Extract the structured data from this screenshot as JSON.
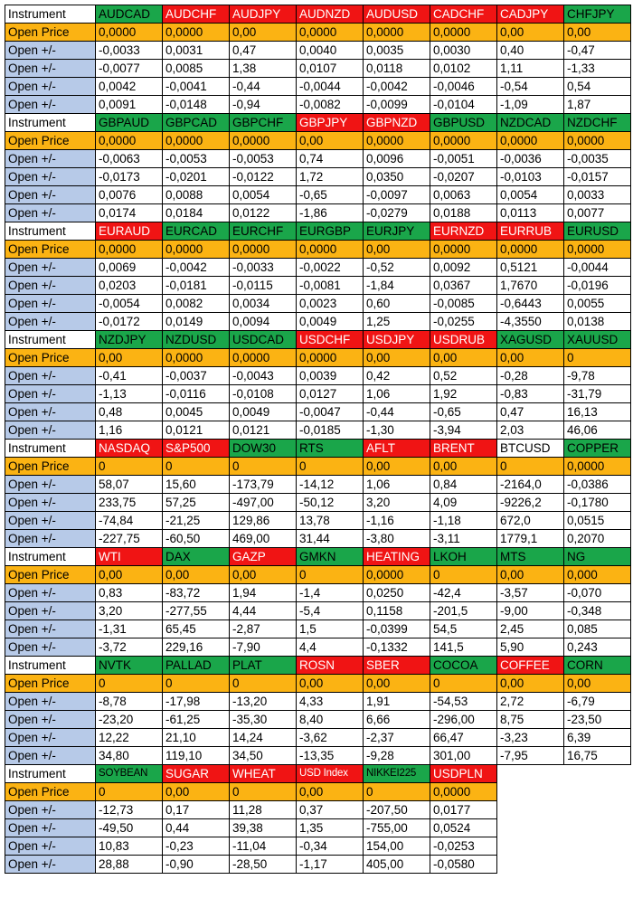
{
  "labels": {
    "instrument": "Instrument",
    "open_price": "Open Price",
    "change": "Open +/-"
  },
  "colors": {
    "green": "#1aa64a",
    "red": "#f01414",
    "orange": "#fbb313",
    "label_blue": "#b7cae8"
  },
  "sections": [
    {
      "instruments": [
        {
          "name": "AUDCAD",
          "color": "green"
        },
        {
          "name": "AUDCHF",
          "color": "red"
        },
        {
          "name": "AUDJPY",
          "color": "red"
        },
        {
          "name": "AUDNZD",
          "color": "red"
        },
        {
          "name": "AUDUSD",
          "color": "red"
        },
        {
          "name": "CADCHF",
          "color": "red"
        },
        {
          "name": "CADJPY",
          "color": "red"
        },
        {
          "name": "CHFJPY",
          "color": "green"
        }
      ],
      "open_price": [
        "0,0000",
        "0,0000",
        "0,00",
        "0,0000",
        "0,0000",
        "0,0000",
        "0,00",
        "0,00"
      ],
      "changes": [
        [
          "-0,0033",
          "0,0031",
          "0,47",
          "0,0040",
          "0,0035",
          "0,0030",
          "0,40",
          "-0,47"
        ],
        [
          "-0,0077",
          "0,0085",
          "1,38",
          "0,0107",
          "0,0118",
          "0,0102",
          "1,11",
          "-1,33"
        ],
        [
          "0,0042",
          "-0,0041",
          "-0,44",
          "-0,0044",
          "-0,0042",
          "-0,0046",
          "-0,54",
          "0,54"
        ],
        [
          "0,0091",
          "-0,0148",
          "-0,94",
          "-0,0082",
          "-0,0099",
          "-0,0104",
          "-1,09",
          "1,87"
        ]
      ]
    },
    {
      "instruments": [
        {
          "name": "GBPAUD",
          "color": "green"
        },
        {
          "name": "GBPCAD",
          "color": "green"
        },
        {
          "name": "GBPCHF",
          "color": "green"
        },
        {
          "name": "GBPJPY",
          "color": "red"
        },
        {
          "name": "GBPNZD",
          "color": "red"
        },
        {
          "name": "GBPUSD",
          "color": "green"
        },
        {
          "name": "NZDCAD",
          "color": "green"
        },
        {
          "name": "NZDCHF",
          "color": "green"
        }
      ],
      "open_price": [
        "0,0000",
        "0,0000",
        "0,0000",
        "0,00",
        "0,0000",
        "0,0000",
        "0,0000",
        "0,0000"
      ],
      "changes": [
        [
          "-0,0063",
          "-0,0053",
          "-0,0053",
          "0,74",
          "0,0096",
          "-0,0051",
          "-0,0036",
          "-0,0035"
        ],
        [
          "-0,0173",
          "-0,0201",
          "-0,0122",
          "1,72",
          "0,0350",
          "-0,0207",
          "-0,0103",
          "-0,0157"
        ],
        [
          "0,0076",
          "0,0088",
          "0,0054",
          "-0,65",
          "-0,0097",
          "0,0063",
          "0,0054",
          "0,0033"
        ],
        [
          "0,0174",
          "0,0184",
          "0,0122",
          "-1,86",
          "-0,0279",
          "0,0188",
          "0,0113",
          "0,0077"
        ]
      ]
    },
    {
      "instruments": [
        {
          "name": "EURAUD",
          "color": "red"
        },
        {
          "name": "EURCAD",
          "color": "green"
        },
        {
          "name": "EURCHF",
          "color": "green"
        },
        {
          "name": "EURGBP",
          "color": "green"
        },
        {
          "name": "EURJPY",
          "color": "green"
        },
        {
          "name": "EURNZD",
          "color": "red"
        },
        {
          "name": "EURRUB",
          "color": "red"
        },
        {
          "name": "EURUSD",
          "color": "green"
        }
      ],
      "open_price": [
        "0,0000",
        "0,0000",
        "0,0000",
        "0,0000",
        "0,00",
        "0,0000",
        "0,0000",
        "0,0000"
      ],
      "changes": [
        [
          "0,0069",
          "-0,0042",
          "-0,0033",
          "-0,0022",
          "-0,52",
          "0,0092",
          "0,5121",
          "-0,0044"
        ],
        [
          "0,0203",
          "-0,0181",
          "-0,0115",
          "-0,0081",
          "-1,84",
          "0,0367",
          "1,7670",
          "-0,0196"
        ],
        [
          "-0,0054",
          "0,0082",
          "0,0034",
          "0,0023",
          "0,60",
          "-0,0085",
          "-0,6443",
          "0,0055"
        ],
        [
          "-0,0172",
          "0,0149",
          "0,0094",
          "0,0049",
          "1,25",
          "-0,0255",
          "-4,3550",
          "0,0138"
        ]
      ]
    },
    {
      "instruments": [
        {
          "name": "NZDJPY",
          "color": "green"
        },
        {
          "name": "NZDUSD",
          "color": "green"
        },
        {
          "name": "USDCAD",
          "color": "green"
        },
        {
          "name": "USDCHF",
          "color": "red"
        },
        {
          "name": "USDJPY",
          "color": "red"
        },
        {
          "name": "USDRUB",
          "color": "red"
        },
        {
          "name": "XAGUSD",
          "color": "green"
        },
        {
          "name": "XAUUSD",
          "color": "green"
        }
      ],
      "open_price": [
        "0,00",
        "0,0000",
        "0,0000",
        "0,0000",
        "0,00",
        "0,00",
        "0,00",
        "0"
      ],
      "changes": [
        [
          "-0,41",
          "-0,0037",
          "-0,0043",
          "0,0039",
          "0,42",
          "0,52",
          "-0,28",
          "-9,78"
        ],
        [
          "-1,13",
          "-0,0116",
          "-0,0108",
          "0,0127",
          "1,06",
          "1,92",
          "-0,83",
          "-31,79"
        ],
        [
          "0,48",
          "0,0045",
          "0,0049",
          "-0,0047",
          "-0,44",
          "-0,65",
          "0,47",
          "16,13"
        ],
        [
          "1,16",
          "0,0121",
          "0,0121",
          "-0,0185",
          "-1,30",
          "-3,94",
          "2,03",
          "46,06"
        ]
      ]
    },
    {
      "instruments": [
        {
          "name": "NASDAQ",
          "color": "red"
        },
        {
          "name": "S&P500",
          "color": "red"
        },
        {
          "name": "DOW30",
          "color": "green"
        },
        {
          "name": "RTS",
          "color": "green"
        },
        {
          "name": "AFLT",
          "color": "red"
        },
        {
          "name": "BRENT",
          "color": "red"
        },
        {
          "name": "BTCUSD",
          "color": "white"
        },
        {
          "name": "COPPER",
          "color": "green"
        }
      ],
      "open_price": [
        "0",
        "0",
        "0",
        "0",
        "0,00",
        "0,00",
        "0",
        "0,0000"
      ],
      "changes": [
        [
          "58,07",
          "15,60",
          "-173,79",
          "-14,12",
          "1,06",
          "0,84",
          "-2164,0",
          "-0,0386"
        ],
        [
          "233,75",
          "57,25",
          "-497,00",
          "-50,12",
          "3,20",
          "4,09",
          "-9226,2",
          "-0,1780"
        ],
        [
          "-74,84",
          "-21,25",
          "129,86",
          "13,78",
          "-1,16",
          "-1,18",
          "672,0",
          "0,0515"
        ],
        [
          "-227,75",
          "-60,50",
          "469,00",
          "31,44",
          "-3,80",
          "-3,11",
          "1779,1",
          "0,2070"
        ]
      ]
    },
    {
      "instruments": [
        {
          "name": "WTI",
          "color": "red"
        },
        {
          "name": "DAX",
          "color": "green"
        },
        {
          "name": "GAZP",
          "color": "red"
        },
        {
          "name": "GMKN",
          "color": "green"
        },
        {
          "name": "HEATING",
          "color": "red"
        },
        {
          "name": "LKOH",
          "color": "green"
        },
        {
          "name": "MTS",
          "color": "green"
        },
        {
          "name": "NG",
          "color": "green"
        }
      ],
      "open_price": [
        "0,00",
        "0,00",
        "0,00",
        "0",
        "0,0000",
        "0",
        "0,00",
        "0,000"
      ],
      "changes": [
        [
          "0,83",
          "-83,72",
          "1,94",
          "-1,4",
          "0,0250",
          "-42,4",
          "-3,57",
          "-0,070"
        ],
        [
          "3,20",
          "-277,55",
          "4,44",
          "-5,4",
          "0,1158",
          "-201,5",
          "-9,00",
          "-0,348"
        ],
        [
          "-1,31",
          "65,45",
          "-2,87",
          "1,5",
          "-0,0399",
          "54,5",
          "2,45",
          "0,085"
        ],
        [
          "-3,72",
          "229,16",
          "-7,90",
          "4,4",
          "-0,1332",
          "141,5",
          "5,90",
          "0,243"
        ]
      ]
    },
    {
      "instruments": [
        {
          "name": "NVTK",
          "color": "green"
        },
        {
          "name": "PALLAD",
          "color": "green"
        },
        {
          "name": "PLAT",
          "color": "green"
        },
        {
          "name": "ROSN",
          "color": "red"
        },
        {
          "name": "SBER",
          "color": "red"
        },
        {
          "name": "COCOA",
          "color": "green"
        },
        {
          "name": "COFFEE",
          "color": "red"
        },
        {
          "name": "CORN",
          "color": "green"
        }
      ],
      "open_price": [
        "0",
        "0",
        "0",
        "0,00",
        "0,00",
        "0",
        "0,00",
        "0,00"
      ],
      "changes": [
        [
          "-8,78",
          "-17,98",
          "-13,20",
          "4,33",
          "1,91",
          "-54,53",
          "2,72",
          "-6,79"
        ],
        [
          "-23,20",
          "-61,25",
          "-35,30",
          "8,40",
          "6,66",
          "-296,00",
          "8,75",
          "-23,50"
        ],
        [
          "12,22",
          "21,10",
          "14,24",
          "-3,62",
          "-2,37",
          "66,47",
          "-3,23",
          "6,39"
        ],
        [
          "34,80",
          "119,10",
          "34,50",
          "-13,35",
          "-9,28",
          "301,00",
          "-7,95",
          "16,75"
        ]
      ]
    },
    {
      "instruments": [
        {
          "name": "SOYBEAN",
          "color": "green",
          "small": true
        },
        {
          "name": "SUGAR",
          "color": "red"
        },
        {
          "name": "WHEAT",
          "color": "red"
        },
        {
          "name": "USD Index",
          "color": "red",
          "small": true
        },
        {
          "name": "NIKKEI225",
          "color": "green",
          "small": true
        },
        {
          "name": "USDPLN",
          "color": "red"
        }
      ],
      "open_price": [
        "0",
        "0,00",
        "0",
        "0,00",
        "0",
        "0,0000"
      ],
      "changes": [
        [
          "-12,73",
          "0,17",
          "11,28",
          "0,37",
          "-207,50",
          "0,0177"
        ],
        [
          "-49,50",
          "0,44",
          "39,38",
          "1,35",
          "-755,00",
          "0,0524"
        ],
        [
          "10,83",
          "-0,23",
          "-11,04",
          "-0,34",
          "154,00",
          "-0,0253"
        ],
        [
          "28,88",
          "-0,90",
          "-28,50",
          "-1,17",
          "405,00",
          "-0,0580"
        ]
      ]
    }
  ]
}
